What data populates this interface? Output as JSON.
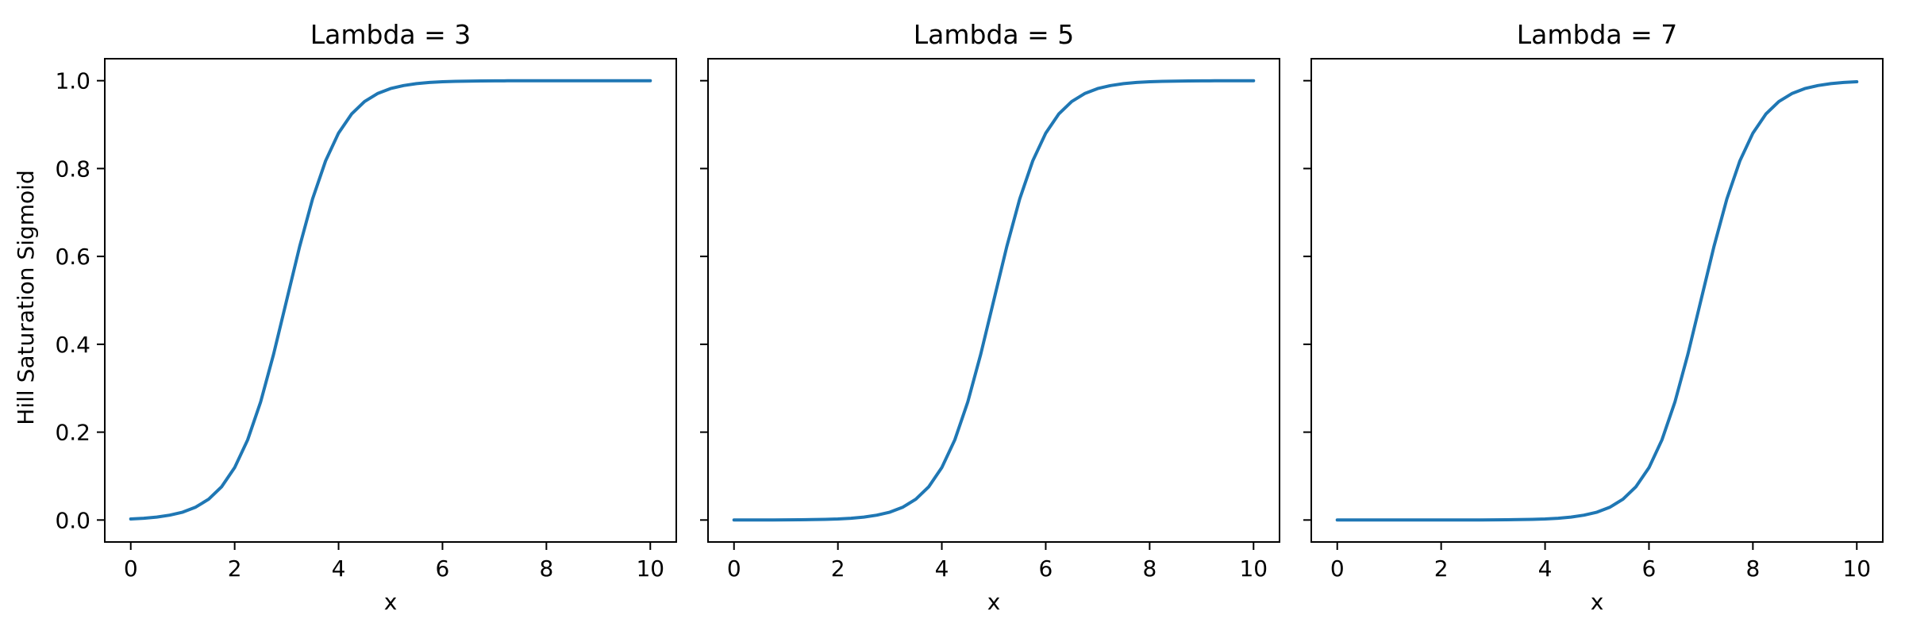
{
  "figure": {
    "background": "#ffffff"
  },
  "chart_data": {
    "type": "line",
    "xlabel": "x",
    "ylabel": "Hill Saturation Sigmoid",
    "line_color": "#1f77b4",
    "axis_color": "#000000",
    "grid": false,
    "legend": "none",
    "xlim": [
      -0.5,
      10.5
    ],
    "ylim": [
      -0.05,
      1.05
    ],
    "xticks": [
      0,
      2,
      4,
      6,
      8,
      10
    ],
    "xtick_labels": [
      "0",
      "2",
      "4",
      "6",
      "8",
      "10"
    ],
    "yticks": [
      0.0,
      0.2,
      0.4,
      0.6,
      0.8,
      1.0
    ],
    "ytick_labels": [
      "0.0",
      "0.2",
      "0.4",
      "0.6",
      "0.8",
      "1.0"
    ],
    "subplots": [
      {
        "title": "Lambda = 3",
        "lambda": 3
      },
      {
        "title": "Lambda = 5",
        "lambda": 5
      },
      {
        "title": "Lambda = 7",
        "lambda": 7
      }
    ],
    "x": [
      0,
      0.25,
      0.5,
      0.75,
      1,
      1.25,
      1.5,
      1.75,
      2,
      2.25,
      2.5,
      2.75,
      3,
      3.25,
      3.5,
      3.75,
      4,
      4.25,
      4.5,
      4.75,
      5,
      5.25,
      5.5,
      5.75,
      6,
      6.25,
      6.5,
      6.75,
      7,
      7.25,
      7.5,
      7.75,
      8,
      8.25,
      8.5,
      8.75,
      9,
      9.25,
      9.5,
      9.75,
      10
    ],
    "series": [
      {
        "name": "Lambda = 3",
        "values": [
          0.00247,
          0.00407,
          0.00669,
          0.01099,
          0.01799,
          0.02931,
          0.04743,
          0.07586,
          0.1192,
          0.18243,
          0.26894,
          0.37754,
          0.5,
          0.62246,
          0.73106,
          0.81757,
          0.8808,
          0.92414,
          0.95257,
          0.97069,
          0.98201,
          0.98901,
          0.99331,
          0.99593,
          0.99753,
          0.9985,
          0.99909,
          0.99945,
          0.99966,
          0.9998,
          0.99988,
          0.99993,
          0.99995,
          0.99997,
          0.99998,
          0.99999,
          0.99999,
          1.0,
          1.0,
          1.0,
          1.0
        ]
      },
      {
        "name": "Lambda = 5",
        "values": [
          5e-05,
          7e-05,
          0.00012,
          0.0002,
          0.00034,
          0.00055,
          0.00091,
          0.0015,
          0.00247,
          0.00407,
          0.00669,
          0.01099,
          0.01799,
          0.02931,
          0.04743,
          0.07586,
          0.1192,
          0.18243,
          0.26894,
          0.37754,
          0.5,
          0.62246,
          0.73106,
          0.81757,
          0.8808,
          0.92414,
          0.95257,
          0.97069,
          0.98201,
          0.98901,
          0.99331,
          0.99593,
          0.99753,
          0.9985,
          0.99909,
          0.99945,
          0.99966,
          0.9998,
          0.99988,
          0.99993,
          0.99995
        ]
      },
      {
        "name": "Lambda = 7",
        "values": [
          0.0,
          0.0,
          0.0,
          0.0,
          1e-05,
          1e-05,
          2e-05,
          3e-05,
          5e-05,
          7e-05,
          0.00012,
          0.0002,
          0.00034,
          0.00055,
          0.00091,
          0.0015,
          0.00247,
          0.00407,
          0.00669,
          0.01099,
          0.01799,
          0.02931,
          0.04743,
          0.07586,
          0.1192,
          0.18243,
          0.26894,
          0.37754,
          0.5,
          0.62246,
          0.73106,
          0.81757,
          0.8808,
          0.92414,
          0.95257,
          0.97069,
          0.98201,
          0.98901,
          0.99331,
          0.99593,
          0.99753
        ]
      }
    ]
  }
}
